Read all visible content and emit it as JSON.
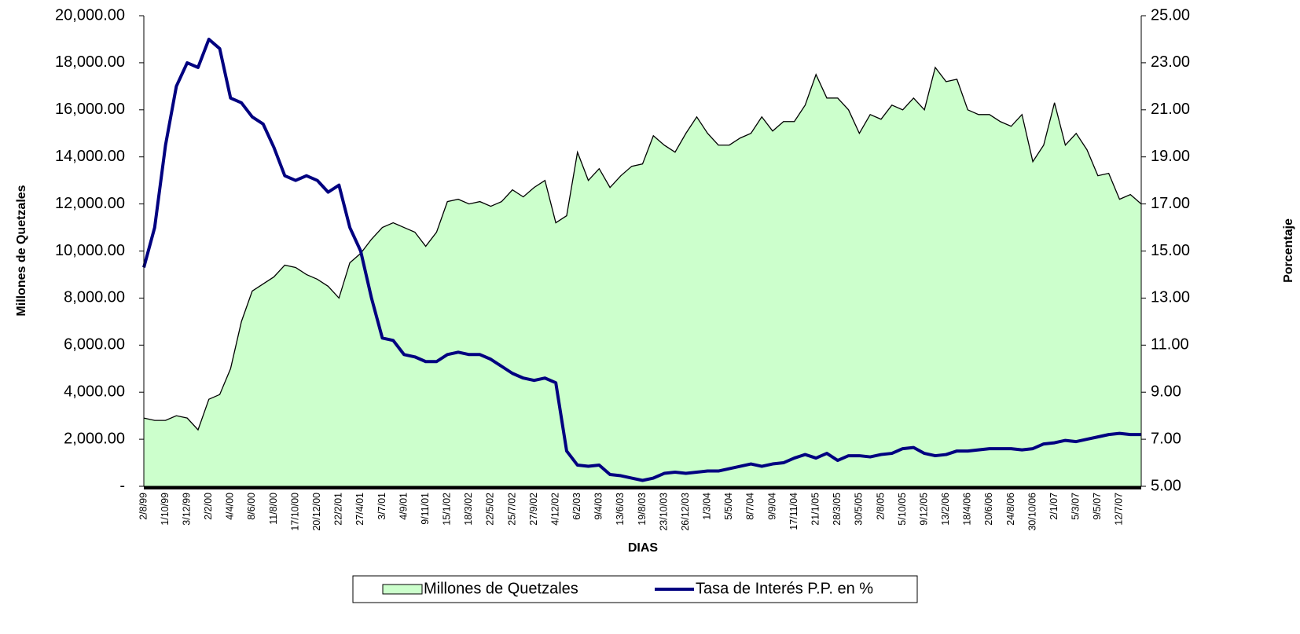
{
  "chart_data": {
    "type": "area-line",
    "x_label": "DIAS",
    "y_label": "Millones de Quetzales",
    "y2_label": "Porcentaje",
    "categories": [
      "2/8/99",
      null,
      "1/10/99",
      null,
      "3/12/99",
      null,
      "2/2/00",
      null,
      "4/4/00",
      null,
      "8/6/00",
      null,
      "11/8/00",
      null,
      "17/10/00",
      null,
      "20/12/00",
      null,
      "22/2/01",
      null,
      "27/4/01",
      null,
      "3/7/01",
      null,
      "4/9/01",
      null,
      "9/11/01",
      null,
      "15/1/02",
      null,
      "18/3/02",
      null,
      "22/5/02",
      null,
      "25/7/02",
      null,
      "27/9/02",
      null,
      "4/12/02",
      null,
      "6/2/03",
      null,
      "9/4/03",
      null,
      "13/6/03",
      null,
      "19/8/03",
      null,
      "23/10/03",
      null,
      "26/12/03",
      null,
      "1/3/04",
      null,
      "5/5/04",
      null,
      "8/7/04",
      null,
      "9/9/04",
      null,
      "17/11/04",
      null,
      "21/1/05",
      null,
      "28/3/05",
      null,
      "30/5/05",
      null,
      "2/8/05",
      null,
      "5/10/05",
      null,
      "9/12/05",
      null,
      "13/2/06",
      null,
      "18/4/06",
      null,
      "20/6/06",
      null,
      "24/8/06",
      null,
      "30/10/06",
      null,
      "2/1/07",
      null,
      "5/3/07",
      null,
      "9/5/07",
      null,
      "12/7/07",
      null,
      null
    ],
    "series": [
      {
        "name": "Millones de Quetzales",
        "type": "area",
        "color": "#ccffcc",
        "values": [
          2900,
          2800,
          2800,
          3000,
          2900,
          2400,
          3700,
          3900,
          5000,
          7000,
          8300,
          8600,
          8900,
          9400,
          9300,
          9000,
          8800,
          8500,
          8000,
          9500,
          9900,
          10500,
          11000,
          11200,
          11000,
          10800,
          10200,
          10800,
          12100,
          12200,
          12000,
          12100,
          11900,
          12100,
          12600,
          12300,
          12700,
          13000,
          11200,
          11500,
          14200,
          13000,
          13500,
          12700,
          13200,
          13600,
          13700,
          14900,
          14500,
          14200,
          15000,
          15700,
          15000,
          14500,
          14500,
          14800,
          15000,
          15700,
          15100,
          15500,
          15500,
          16200,
          17500,
          16500,
          16500,
          16000,
          15000,
          15800,
          15600,
          16200,
          16000,
          16500,
          16000,
          17800,
          17200,
          17300,
          16000,
          15800,
          15800,
          15500,
          15300,
          15800,
          13800,
          14500,
          16300,
          14500,
          15000,
          14300,
          13200,
          13300,
          12200,
          12400,
          12000
        ]
      },
      {
        "name": "Tasa de Interés P.P. en %",
        "type": "line",
        "axis": "y2",
        "color": "#000080",
        "values": [
          14.3,
          16.0,
          19.5,
          22.0,
          23.0,
          22.8,
          24.0,
          23.6,
          21.5,
          21.3,
          20.7,
          20.4,
          19.4,
          18.2,
          18.0,
          18.2,
          18.0,
          17.5,
          17.8,
          16.0,
          15.0,
          13.0,
          11.3,
          11.2,
          10.6,
          10.5,
          10.3,
          10.3,
          10.6,
          10.7,
          10.6,
          10.6,
          10.4,
          10.1,
          9.8,
          9.6,
          9.5,
          9.6,
          9.4,
          6.5,
          5.9,
          5.85,
          5.9,
          5.5,
          5.45,
          5.35,
          5.25,
          5.35,
          5.55,
          5.6,
          5.55,
          5.6,
          5.65,
          5.65,
          5.75,
          5.85,
          5.95,
          5.85,
          5.95,
          6.0,
          6.2,
          6.35,
          6.2,
          6.4,
          6.1,
          6.3,
          6.3,
          6.25,
          6.35,
          6.4,
          6.6,
          6.65,
          6.4,
          6.3,
          6.35,
          6.5,
          6.5,
          6.55,
          6.6,
          6.6,
          6.6,
          6.55,
          6.6,
          6.8,
          6.85,
          6.95,
          6.9,
          7.0,
          7.1,
          7.2,
          7.25,
          7.2,
          7.2
        ]
      }
    ],
    "ylim": [
      0,
      20000
    ],
    "yticks": [
      {
        "value": 0,
        "label": "-"
      },
      {
        "value": 2000,
        "label": "2,000.00"
      },
      {
        "value": 4000,
        "label": "4,000.00"
      },
      {
        "value": 6000,
        "label": "6,000.00"
      },
      {
        "value": 8000,
        "label": "8,000.00"
      },
      {
        "value": 10000,
        "label": "10,000.00"
      },
      {
        "value": 12000,
        "label": "12,000.00"
      },
      {
        "value": 14000,
        "label": "14,000.00"
      },
      {
        "value": 16000,
        "label": "16,000.00"
      },
      {
        "value": 18000,
        "label": "18,000.00"
      },
      {
        "value": 20000,
        "label": "20,000.00"
      }
    ],
    "y2lim": [
      5,
      25
    ],
    "y2ticks": [
      {
        "value": 5,
        "label": "5.00"
      },
      {
        "value": 7,
        "label": "7.00"
      },
      {
        "value": 9,
        "label": "9.00"
      },
      {
        "value": 11,
        "label": "11.00"
      },
      {
        "value": 13,
        "label": "13.00"
      },
      {
        "value": 15,
        "label": "15.00"
      },
      {
        "value": 17,
        "label": "17.00"
      },
      {
        "value": 19,
        "label": "19.00"
      },
      {
        "value": 21,
        "label": "21.00"
      },
      {
        "value": 23,
        "label": "23.00"
      },
      {
        "value": 25,
        "label": "25.00"
      }
    ],
    "grid": false,
    "legend": "bottom"
  }
}
